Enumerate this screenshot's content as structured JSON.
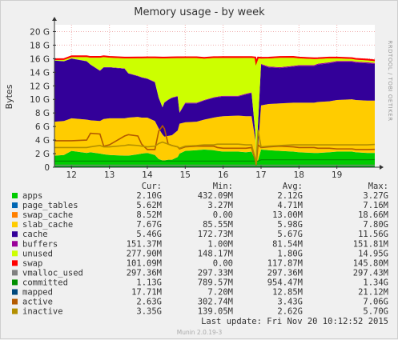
{
  "chart_data": {
    "type": "area",
    "title": "Memory usage - by week",
    "ylabel": "Bytes",
    "xlabel": "",
    "side_label": "RRDTOOL / TOBI OETIKER",
    "ylim": [
      0,
      21
    ],
    "y_ticks": [
      "0",
      "2 G",
      "4 G",
      "6 G",
      "8 G",
      "10 G",
      "12 G",
      "14 G",
      "16 G",
      "18 G",
      "20 G"
    ],
    "y_tick_values": [
      0,
      2,
      4,
      6,
      8,
      10,
      12,
      14,
      16,
      18,
      20
    ],
    "x_ticks": [
      "12",
      "13",
      "14",
      "15",
      "16",
      "17",
      "18",
      "19"
    ],
    "x_tick_values": [
      12,
      13,
      14,
      15,
      16,
      17,
      18,
      19
    ],
    "xlim": [
      11.55,
      20.0
    ],
    "grid": true,
    "legend_columns": [
      "Cur:",
      "Min:",
      "Avg:",
      "Max:"
    ],
    "legend": [
      {
        "name": "apps",
        "color": "#00cc00",
        "cur": "2.10G",
        "min": "432.09M",
        "avg": "2.12G",
        "max": "3.27G"
      },
      {
        "name": "page_tables",
        "color": "#0066b3",
        "cur": "5.62M",
        "min": "3.27M",
        "avg": "4.71M",
        "max": "7.16M"
      },
      {
        "name": "swap_cache",
        "color": "#ff8000",
        "cur": "8.52M",
        "min": "0.00",
        "avg": "13.00M",
        "max": "18.66M"
      },
      {
        "name": "slab_cache",
        "color": "#ffcc00",
        "cur": "7.67G",
        "min": "85.55M",
        "avg": "5.98G",
        "max": "7.80G"
      },
      {
        "name": "cache",
        "color": "#330099",
        "cur": "5.46G",
        "min": "172.73M",
        "avg": "5.67G",
        "max": "11.56G"
      },
      {
        "name": "buffers",
        "color": "#990099",
        "cur": "151.37M",
        "min": "1.00M",
        "avg": "81.54M",
        "max": "151.81M"
      },
      {
        "name": "unused",
        "color": "#ccff00",
        "cur": "277.90M",
        "min": "148.17M",
        "avg": "1.80G",
        "max": "14.95G"
      },
      {
        "name": "swap",
        "color": "#ff0000",
        "cur": "101.09M",
        "min": "0.00",
        "avg": "117.87M",
        "max": "145.80M"
      },
      {
        "name": "vmalloc_used",
        "color": "#808080",
        "cur": "297.36M",
        "min": "297.33M",
        "avg": "297.36M",
        "max": "297.43M"
      },
      {
        "name": "committed",
        "color": "#008f00",
        "cur": "1.13G",
        "min": "789.57M",
        "avg": "954.47M",
        "max": "1.34G"
      },
      {
        "name": "mapped",
        "color": "#00487d",
        "cur": "17.71M",
        "min": "7.20M",
        "avg": "12.85M",
        "max": "21.12M"
      },
      {
        "name": "active",
        "color": "#b35a00",
        "cur": "2.63G",
        "min": "302.74M",
        "avg": "3.43G",
        "max": "7.06G"
      },
      {
        "name": "inactive",
        "color": "#b38f00",
        "cur": "3.35G",
        "min": "139.05M",
        "avg": "2.62G",
        "max": "5.70G"
      }
    ],
    "stack_order": [
      "apps",
      "page_tables",
      "swap_cache",
      "slab_cache",
      "cache",
      "buffers",
      "unused",
      "swap"
    ],
    "x": [
      11.55,
      11.8,
      12.0,
      12.4,
      12.5,
      12.75,
      12.85,
      13.0,
      13.4,
      13.5,
      13.75,
      13.85,
      14.0,
      14.2,
      14.3,
      14.4,
      14.45,
      14.55,
      14.65,
      14.8,
      14.85,
      15.0,
      15.3,
      15.5,
      15.75,
      15.85,
      16.0,
      16.4,
      16.6,
      16.75,
      16.85,
      16.87,
      16.92,
      17.0,
      17.2,
      17.5,
      17.85,
      18.0,
      18.4,
      18.5,
      18.8,
      19.0,
      19.4,
      19.5,
      19.8,
      20.0
    ],
    "series": [
      {
        "name": "apps",
        "values": [
          1.7,
          1.8,
          2.4,
          2.1,
          2.2,
          2.0,
          1.9,
          1.8,
          1.7,
          1.7,
          1.9,
          2.0,
          2.1,
          1.8,
          1.2,
          1.0,
          1.0,
          1.1,
          1.1,
          1.5,
          2.0,
          2.4,
          2.5,
          2.6,
          2.5,
          2.4,
          2.3,
          2.3,
          2.2,
          2.3,
          1.0,
          0.5,
          1.0,
          2.6,
          2.5,
          2.4,
          2.3,
          2.2,
          2.1,
          2.1,
          2.2,
          2.3,
          2.3,
          2.2,
          2.1,
          2.1
        ]
      },
      {
        "name": "page_tables",
        "values": [
          0.005,
          0.005,
          0.005,
          0.005,
          0.005,
          0.005,
          0.005,
          0.005,
          0.005,
          0.005,
          0.005,
          0.005,
          0.005,
          0.005,
          0.005,
          0.005,
          0.005,
          0.005,
          0.005,
          0.005,
          0.005,
          0.005,
          0.005,
          0.005,
          0.005,
          0.005,
          0.005,
          0.005,
          0.005,
          0.005,
          0.005,
          0.005,
          0.005,
          0.005,
          0.005,
          0.005,
          0.005,
          0.005,
          0.005,
          0.005,
          0.005,
          0.005,
          0.005,
          0.005,
          0.005,
          0.005
        ]
      },
      {
        "name": "swap_cache",
        "values": [
          0.01,
          0.01,
          0.01,
          0.01,
          0.01,
          0.01,
          0.01,
          0.01,
          0.01,
          0.01,
          0.01,
          0.01,
          0.01,
          0.01,
          0.01,
          0.01,
          0.01,
          0.01,
          0.01,
          0.01,
          0.01,
          0.01,
          0.01,
          0.01,
          0.01,
          0.01,
          0.01,
          0.01,
          0.01,
          0.01,
          0.01,
          0.01,
          0.01,
          0.01,
          0.01,
          0.01,
          0.01,
          0.01,
          0.01,
          0.01,
          0.01,
          0.01,
          0.01,
          0.01,
          0.01,
          0.01
        ]
      },
      {
        "name": "slab_cache",
        "values": [
          5.0,
          5.0,
          4.8,
          4.9,
          4.7,
          4.8,
          5.2,
          5.4,
          5.5,
          5.6,
          5.5,
          5.3,
          5.2,
          5.0,
          4.5,
          3.8,
          3.5,
          3.5,
          3.6,
          3.9,
          4.4,
          4.2,
          4.2,
          4.4,
          4.8,
          5.0,
          5.2,
          5.3,
          5.3,
          5.2,
          3.0,
          0.1,
          2.0,
          6.5,
          6.8,
          7.0,
          7.2,
          7.3,
          7.4,
          7.5,
          7.5,
          7.6,
          7.7,
          7.7,
          7.7,
          7.7
        ]
      },
      {
        "name": "cache",
        "values": [
          9.0,
          8.8,
          8.8,
          8.6,
          8.2,
          7.4,
          7.6,
          7.5,
          7.3,
          6.5,
          6.0,
          5.9,
          5.7,
          5.7,
          4.5,
          4.0,
          5.0,
          5.3,
          5.5,
          5.0,
          1.6,
          2.8,
          2.7,
          2.8,
          2.9,
          2.9,
          2.9,
          2.8,
          3.2,
          3.4,
          1.0,
          0.2,
          3.5,
          6.0,
          5.4,
          5.2,
          5.3,
          5.4,
          5.4,
          5.5,
          5.6,
          5.6,
          5.5,
          5.5,
          5.5,
          5.4
        ]
      },
      {
        "name": "buffers",
        "values": [
          0.02,
          0.02,
          0.03,
          0.03,
          0.04,
          0.04,
          0.04,
          0.05,
          0.05,
          0.05,
          0.06,
          0.06,
          0.07,
          0.07,
          0.06,
          0.05,
          0.05,
          0.06,
          0.07,
          0.08,
          0.08,
          0.09,
          0.09,
          0.1,
          0.1,
          0.1,
          0.11,
          0.11,
          0.12,
          0.12,
          0.05,
          0.01,
          0.05,
          0.12,
          0.13,
          0.13,
          0.14,
          0.14,
          0.14,
          0.15,
          0.15,
          0.15,
          0.15,
          0.15,
          0.15,
          0.15
        ]
      },
      {
        "name": "unused",
        "values": [
          0.08,
          0.2,
          0.2,
          0.6,
          1.0,
          1.9,
          1.5,
          1.4,
          1.5,
          2.2,
          2.6,
          2.8,
          3.0,
          3.5,
          5.8,
          7.2,
          6.5,
          6.1,
          5.8,
          5.6,
          8.0,
          6.6,
          6.6,
          6.1,
          5.8,
          5.7,
          5.6,
          5.6,
          5.3,
          5.1,
          11.0,
          14.5,
          9.5,
          0.8,
          1.2,
          1.4,
          1.2,
          1.0,
          0.9,
          0.7,
          0.6,
          0.4,
          0.3,
          0.3,
          0.3,
          0.28
        ]
      },
      {
        "name": "swap",
        "values": [
          0.12,
          0.12,
          0.12,
          0.12,
          0.12,
          0.12,
          0.12,
          0.12,
          0.12,
          0.12,
          0.12,
          0.12,
          0.12,
          0.12,
          0.12,
          0.12,
          0.12,
          0.12,
          0.12,
          0.12,
          0.12,
          0.12,
          0.12,
          0.12,
          0.12,
          0.12,
          0.12,
          0.12,
          0.12,
          0.12,
          0.12,
          0.12,
          0.12,
          0.12,
          0.12,
          0.12,
          0.12,
          0.12,
          0.12,
          0.12,
          0.12,
          0.12,
          0.12,
          0.12,
          0.12,
          0.12
        ]
      }
    ],
    "line_series": [
      {
        "name": "vmalloc_used",
        "color": "#808080",
        "values": [
          0.3,
          0.3,
          0.3,
          0.3,
          0.3,
          0.3,
          0.3,
          0.3,
          0.3,
          0.3,
          0.3,
          0.3,
          0.3,
          0.3,
          0.3,
          0.3,
          0.3,
          0.3,
          0.3,
          0.3,
          0.3,
          0.3,
          0.3,
          0.3,
          0.3,
          0.3,
          0.3,
          0.3,
          0.3,
          0.3,
          0.3,
          0.3,
          0.3,
          0.3,
          0.3,
          0.3,
          0.3,
          0.3,
          0.3,
          0.3,
          0.3,
          0.3,
          0.3,
          0.3,
          0.3,
          0.3
        ]
      },
      {
        "name": "committed",
        "color": "#008f00",
        "values": [
          0.9,
          0.9,
          0.9,
          0.9,
          0.9,
          0.9,
          0.9,
          0.9,
          0.9,
          0.9,
          0.9,
          0.9,
          0.9,
          0.9,
          0.9,
          0.9,
          0.9,
          0.9,
          0.9,
          0.9,
          0.9,
          0.9,
          0.9,
          0.9,
          0.9,
          0.9,
          0.9,
          0.9,
          0.9,
          0.9,
          0.9,
          0.9,
          0.9,
          1.1,
          1.1,
          1.1,
          1.1,
          1.1,
          1.1,
          1.1,
          1.1,
          1.1,
          1.1,
          1.1,
          1.1,
          1.13
        ]
      },
      {
        "name": "mapped",
        "color": "#00487d",
        "values": [
          0.015,
          0.015,
          0.015,
          0.015,
          0.015,
          0.015,
          0.015,
          0.015,
          0.015,
          0.015,
          0.015,
          0.015,
          0.015,
          0.015,
          0.015,
          0.015,
          0.015,
          0.015,
          0.015,
          0.015,
          0.015,
          0.015,
          0.015,
          0.015,
          0.015,
          0.015,
          0.015,
          0.015,
          0.015,
          0.015,
          0.015,
          0.015,
          0.015,
          0.015,
          0.015,
          0.015,
          0.015,
          0.015,
          0.015,
          0.015,
          0.015,
          0.015,
          0.015,
          0.015,
          0.015,
          0.015
        ]
      },
      {
        "name": "active",
        "color": "#b35a00",
        "values": [
          3.9,
          3.9,
          3.9,
          4.0,
          5.0,
          4.9,
          3.1,
          3.3,
          4.6,
          4.8,
          4.6,
          3.4,
          2.6,
          2.6,
          5.3,
          6.1,
          5.7,
          3.4,
          3.2,
          3.0,
          2.7,
          3.0,
          3.1,
          3.1,
          3.1,
          2.9,
          2.8,
          2.8,
          2.8,
          2.9,
          1.0,
          0.3,
          3.3,
          2.9,
          3.0,
          3.1,
          3.0,
          2.9,
          2.9,
          2.8,
          2.8,
          2.7,
          2.7,
          2.6,
          2.6,
          2.63
        ]
      },
      {
        "name": "inactive",
        "color": "#b38f00",
        "values": [
          2.9,
          2.9,
          2.9,
          2.9,
          3.0,
          3.2,
          3.0,
          3.0,
          3.2,
          3.3,
          3.2,
          3.1,
          3.0,
          3.1,
          3.5,
          3.7,
          3.6,
          3.4,
          3.2,
          3.0,
          2.8,
          3.1,
          3.2,
          3.3,
          3.3,
          3.4,
          3.4,
          3.4,
          3.3,
          3.3,
          1.2,
          0.4,
          5.5,
          3.0,
          3.1,
          3.2,
          3.3,
          3.3,
          3.3,
          3.3,
          3.3,
          3.3,
          3.3,
          3.3,
          3.3,
          3.35
        ]
      }
    ]
  },
  "footer": {
    "last_update": "Last update:  Fri Nov 20 10:12:52 2015",
    "version": "Munin 2.0.19-3"
  }
}
